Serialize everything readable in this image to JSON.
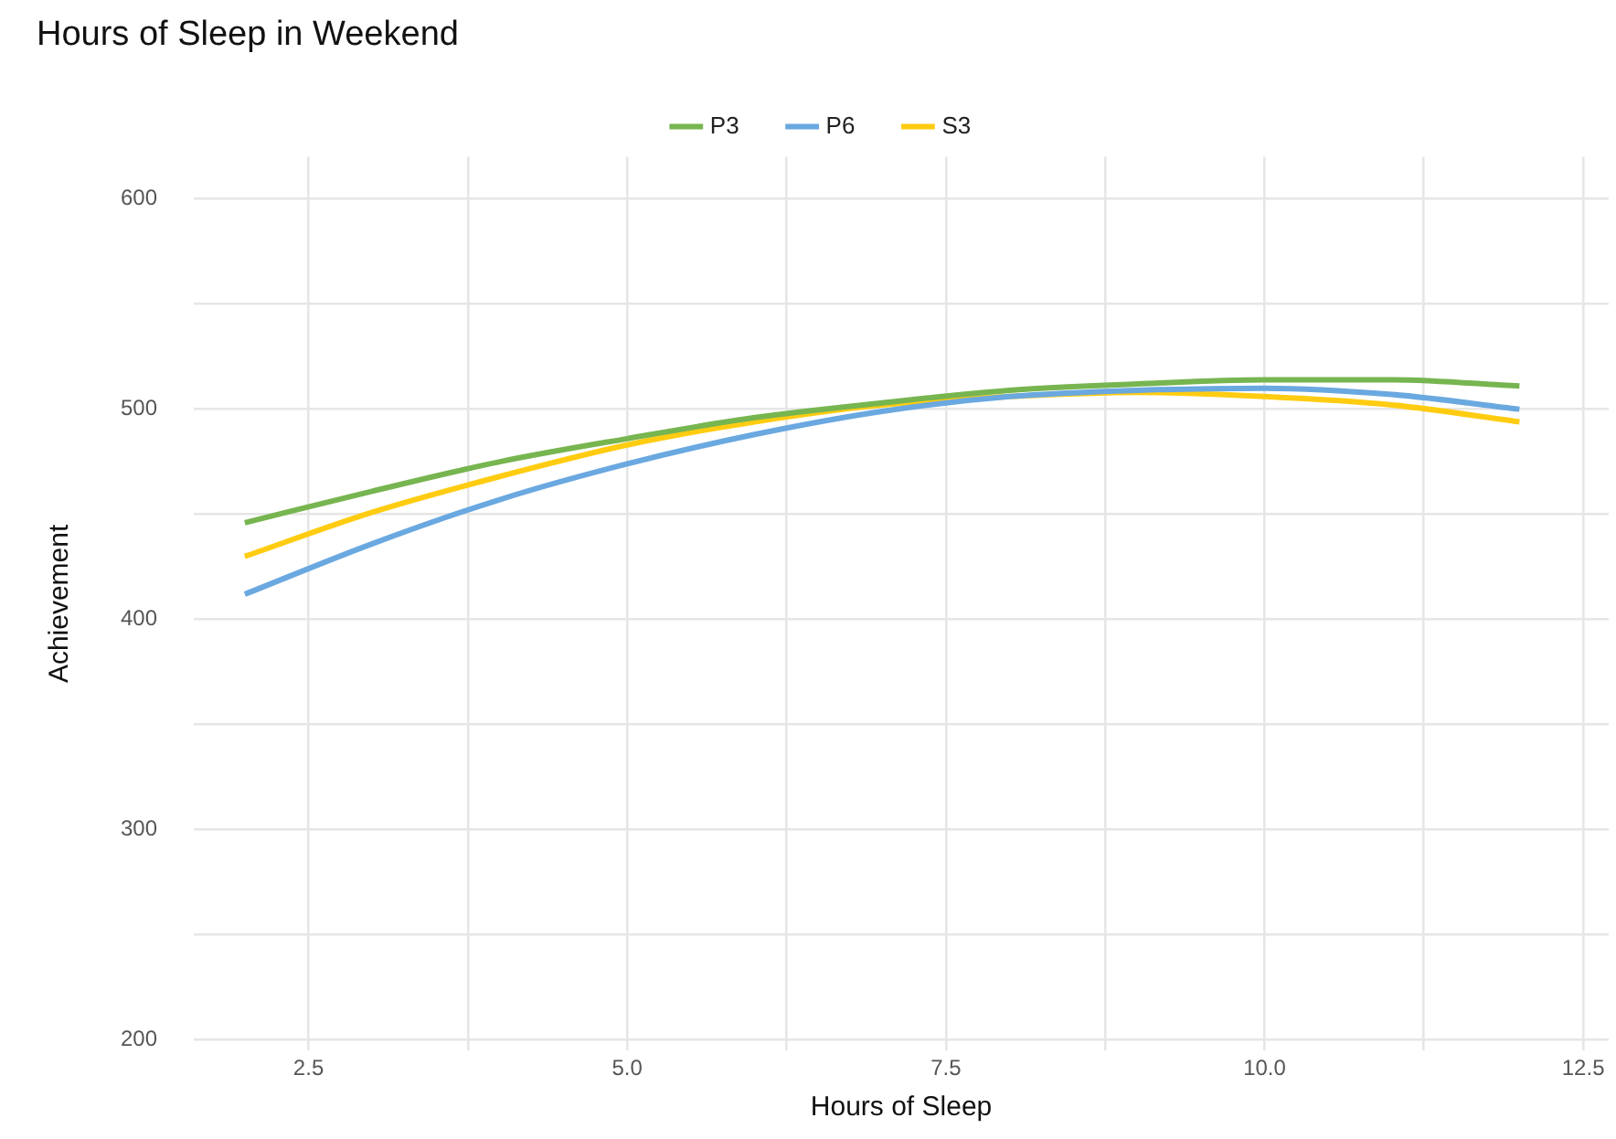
{
  "chart_data": {
    "type": "line",
    "title": "Hours of Sleep in Weekend",
    "xlabel": "Hours of Sleep",
    "ylabel": "Achievement",
    "x": [
      2,
      3,
      4,
      5,
      6,
      7,
      8,
      9,
      10,
      11,
      12
    ],
    "series": [
      {
        "name": "P3",
        "color": "#77b550",
        "values": [
          446,
          461,
          475,
          486,
          496,
          503,
          509,
          512,
          514,
          514,
          511
        ]
      },
      {
        "name": "P6",
        "color": "#6aa8e0",
        "values": [
          412,
          436,
          457,
          474,
          488,
          499,
          506,
          509,
          510,
          507,
          500
        ]
      },
      {
        "name": "S3",
        "color": "#ffcc11",
        "values": [
          430,
          451,
          468,
          483,
          494,
          502,
          506,
          508,
          506,
          502,
          494
        ]
      }
    ],
    "xlim": [
      1.6,
      12.7
    ],
    "ylim": [
      195,
      620
    ],
    "xticks": [
      2.5,
      {
        "value": 3.75,
        "label": null
      },
      {
        "value": 5,
        "label": "5.0"
      },
      {
        "value": 6.25,
        "label": null
      },
      7.5,
      {
        "value": 8.75,
        "label": null
      },
      {
        "value": 10,
        "label": "10.0"
      },
      {
        "value": 11.25,
        "label": null
      },
      12.5
    ],
    "yticks": [
      200,
      {
        "value": 250,
        "label": null
      },
      300,
      {
        "value": 350,
        "label": null
      },
      400,
      {
        "value": 450,
        "label": null
      },
      500,
      {
        "value": 550,
        "label": null
      },
      600
    ],
    "grid": true,
    "legend": "top",
    "marker": "none",
    "line_style": "solid"
  }
}
